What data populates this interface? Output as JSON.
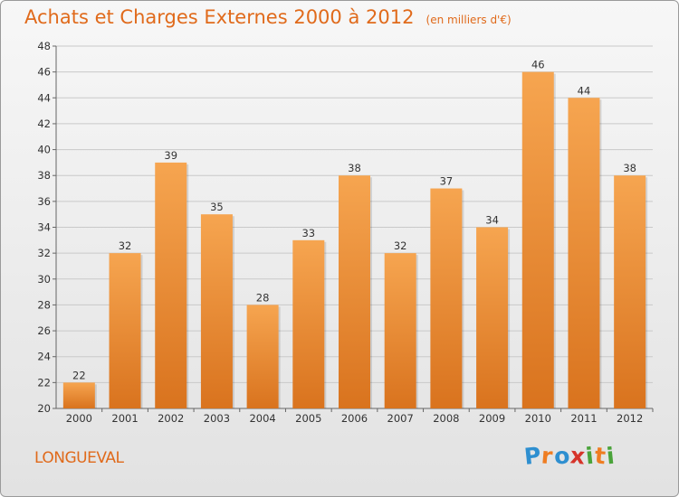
{
  "header": {
    "title": "Achats et Charges Externes 2000 à 2012",
    "unit": "(en milliers d'€)"
  },
  "footer": {
    "place": "LONGUEVAL",
    "brand": "Proxiti",
    "brand_letters": [
      {
        "ch": "P",
        "color": "#2e8fd0"
      },
      {
        "ch": "r",
        "color": "#ef7d22"
      },
      {
        "ch": "o",
        "color": "#2e8fd0"
      },
      {
        "ch": "x",
        "color": "#d6342a"
      },
      {
        "ch": "i",
        "color": "#4aa33a"
      },
      {
        "ch": "t",
        "color": "#ef7d22"
      },
      {
        "ch": "i",
        "color": "#4aa33a"
      }
    ]
  },
  "colors": {
    "accent": "#e06a1b",
    "bar_top": "#f6a550",
    "bar_bottom": "#d9731e",
    "grid": "#c9c9c9"
  },
  "chart_data": {
    "type": "bar",
    "title": "Achats et Charges Externes 2000 à 2012",
    "xlabel": "",
    "ylabel": "",
    "categories": [
      "2000",
      "2001",
      "2002",
      "2003",
      "2004",
      "2005",
      "2006",
      "2007",
      "2008",
      "2009",
      "2010",
      "2011",
      "2012"
    ],
    "values": [
      22,
      32,
      39,
      35,
      28,
      33,
      38,
      32,
      37,
      34,
      46,
      44,
      38
    ],
    "ylim": [
      20,
      48
    ],
    "yticks": [
      20,
      22,
      24,
      26,
      28,
      30,
      32,
      34,
      36,
      38,
      40,
      42,
      44,
      46,
      48
    ],
    "grid": true,
    "data_labels": true
  }
}
